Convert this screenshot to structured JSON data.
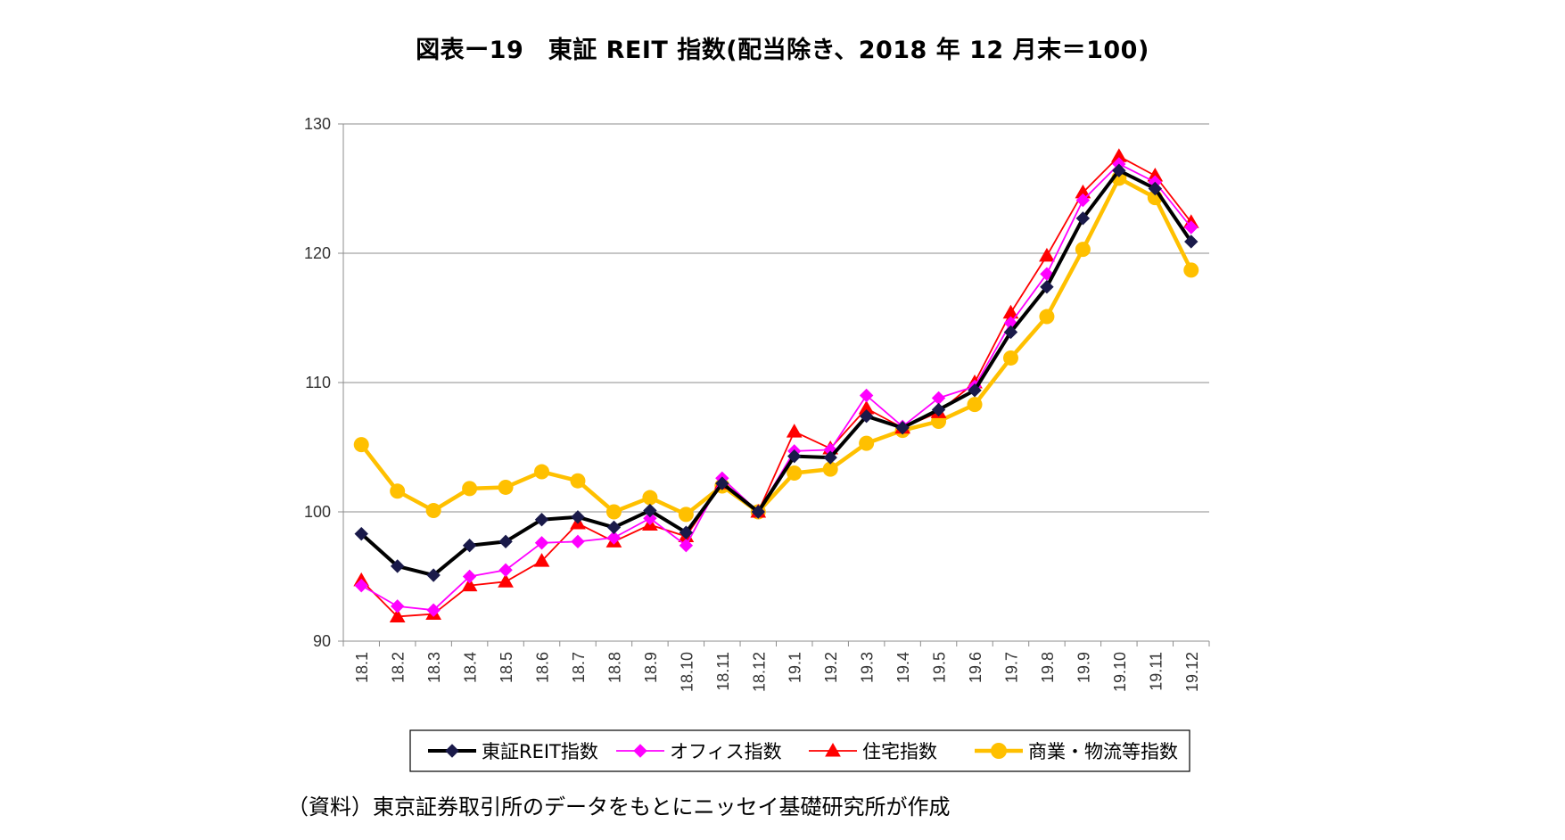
{
  "title": "図表ー19　東証 REIT 指数(配当除き、2018 年 12 月末＝100)",
  "source": "（資料）東京証券取引所のデータをもとにニッセイ基礎研究所が作成",
  "chart_data": {
    "type": "line",
    "title": "図表ー19　東証 REIT 指数(配当除き、2018 年 12 月末＝100)",
    "categories": [
      "18.1",
      "18.2",
      "18.3",
      "18.4",
      "18.5",
      "18.6",
      "18.7",
      "18.8",
      "18.9",
      "18.10",
      "18.11",
      "18.12",
      "19.1",
      "19.2",
      "19.3",
      "19.4",
      "19.5",
      "19.6",
      "19.7",
      "19.8",
      "19.9",
      "19.10",
      "19.11",
      "19.12"
    ],
    "ylim": [
      90,
      130
    ],
    "yticks": [
      "90",
      "100",
      "110",
      "120",
      "130"
    ],
    "grid": true,
    "legend_position": "bottom",
    "series": [
      {
        "name": "東証REIT指数",
        "color": "#000000",
        "marker": "diamond",
        "marker_color": "#1a1a4a",
        "values": [
          98.3,
          95.8,
          95.1,
          97.4,
          97.7,
          99.4,
          99.6,
          98.8,
          100.1,
          98.4,
          102.2,
          100.0,
          104.3,
          104.2,
          107.4,
          106.5,
          107.9,
          109.4,
          113.9,
          117.4,
          122.7,
          126.4,
          125.0,
          120.9
        ]
      },
      {
        "name": "オフィス指数",
        "color": "#ff00ff",
        "marker": "diamond",
        "marker_color": "#ff00ff",
        "values": [
          94.3,
          92.7,
          92.4,
          95.0,
          95.5,
          97.6,
          97.7,
          98.0,
          99.5,
          97.4,
          102.6,
          100.0,
          104.7,
          104.8,
          109.0,
          106.6,
          108.8,
          109.7,
          114.6,
          118.4,
          124.1,
          126.9,
          125.5,
          122.0
        ]
      },
      {
        "name": "住宅指数",
        "color": "#ff0000",
        "marker": "triangle",
        "marker_color": "#ff0000",
        "values": [
          94.7,
          91.9,
          92.1,
          94.3,
          94.6,
          96.2,
          99.1,
          97.7,
          99.0,
          98.1,
          102.2,
          100.0,
          106.2,
          104.9,
          108.0,
          106.5,
          107.7,
          110.0,
          115.4,
          119.8,
          124.7,
          127.5,
          126.0,
          122.4
        ]
      },
      {
        "name": "商業・物流等指数",
        "color": "#ffc000",
        "marker": "circle",
        "marker_color": "#ffc000",
        "values": [
          105.2,
          101.6,
          100.1,
          101.8,
          101.9,
          103.1,
          102.4,
          100.0,
          101.1,
          99.8,
          102.0,
          100.0,
          103.0,
          103.3,
          105.3,
          106.3,
          107.0,
          108.3,
          111.9,
          115.1,
          120.3,
          125.8,
          124.3,
          118.7
        ]
      }
    ]
  }
}
